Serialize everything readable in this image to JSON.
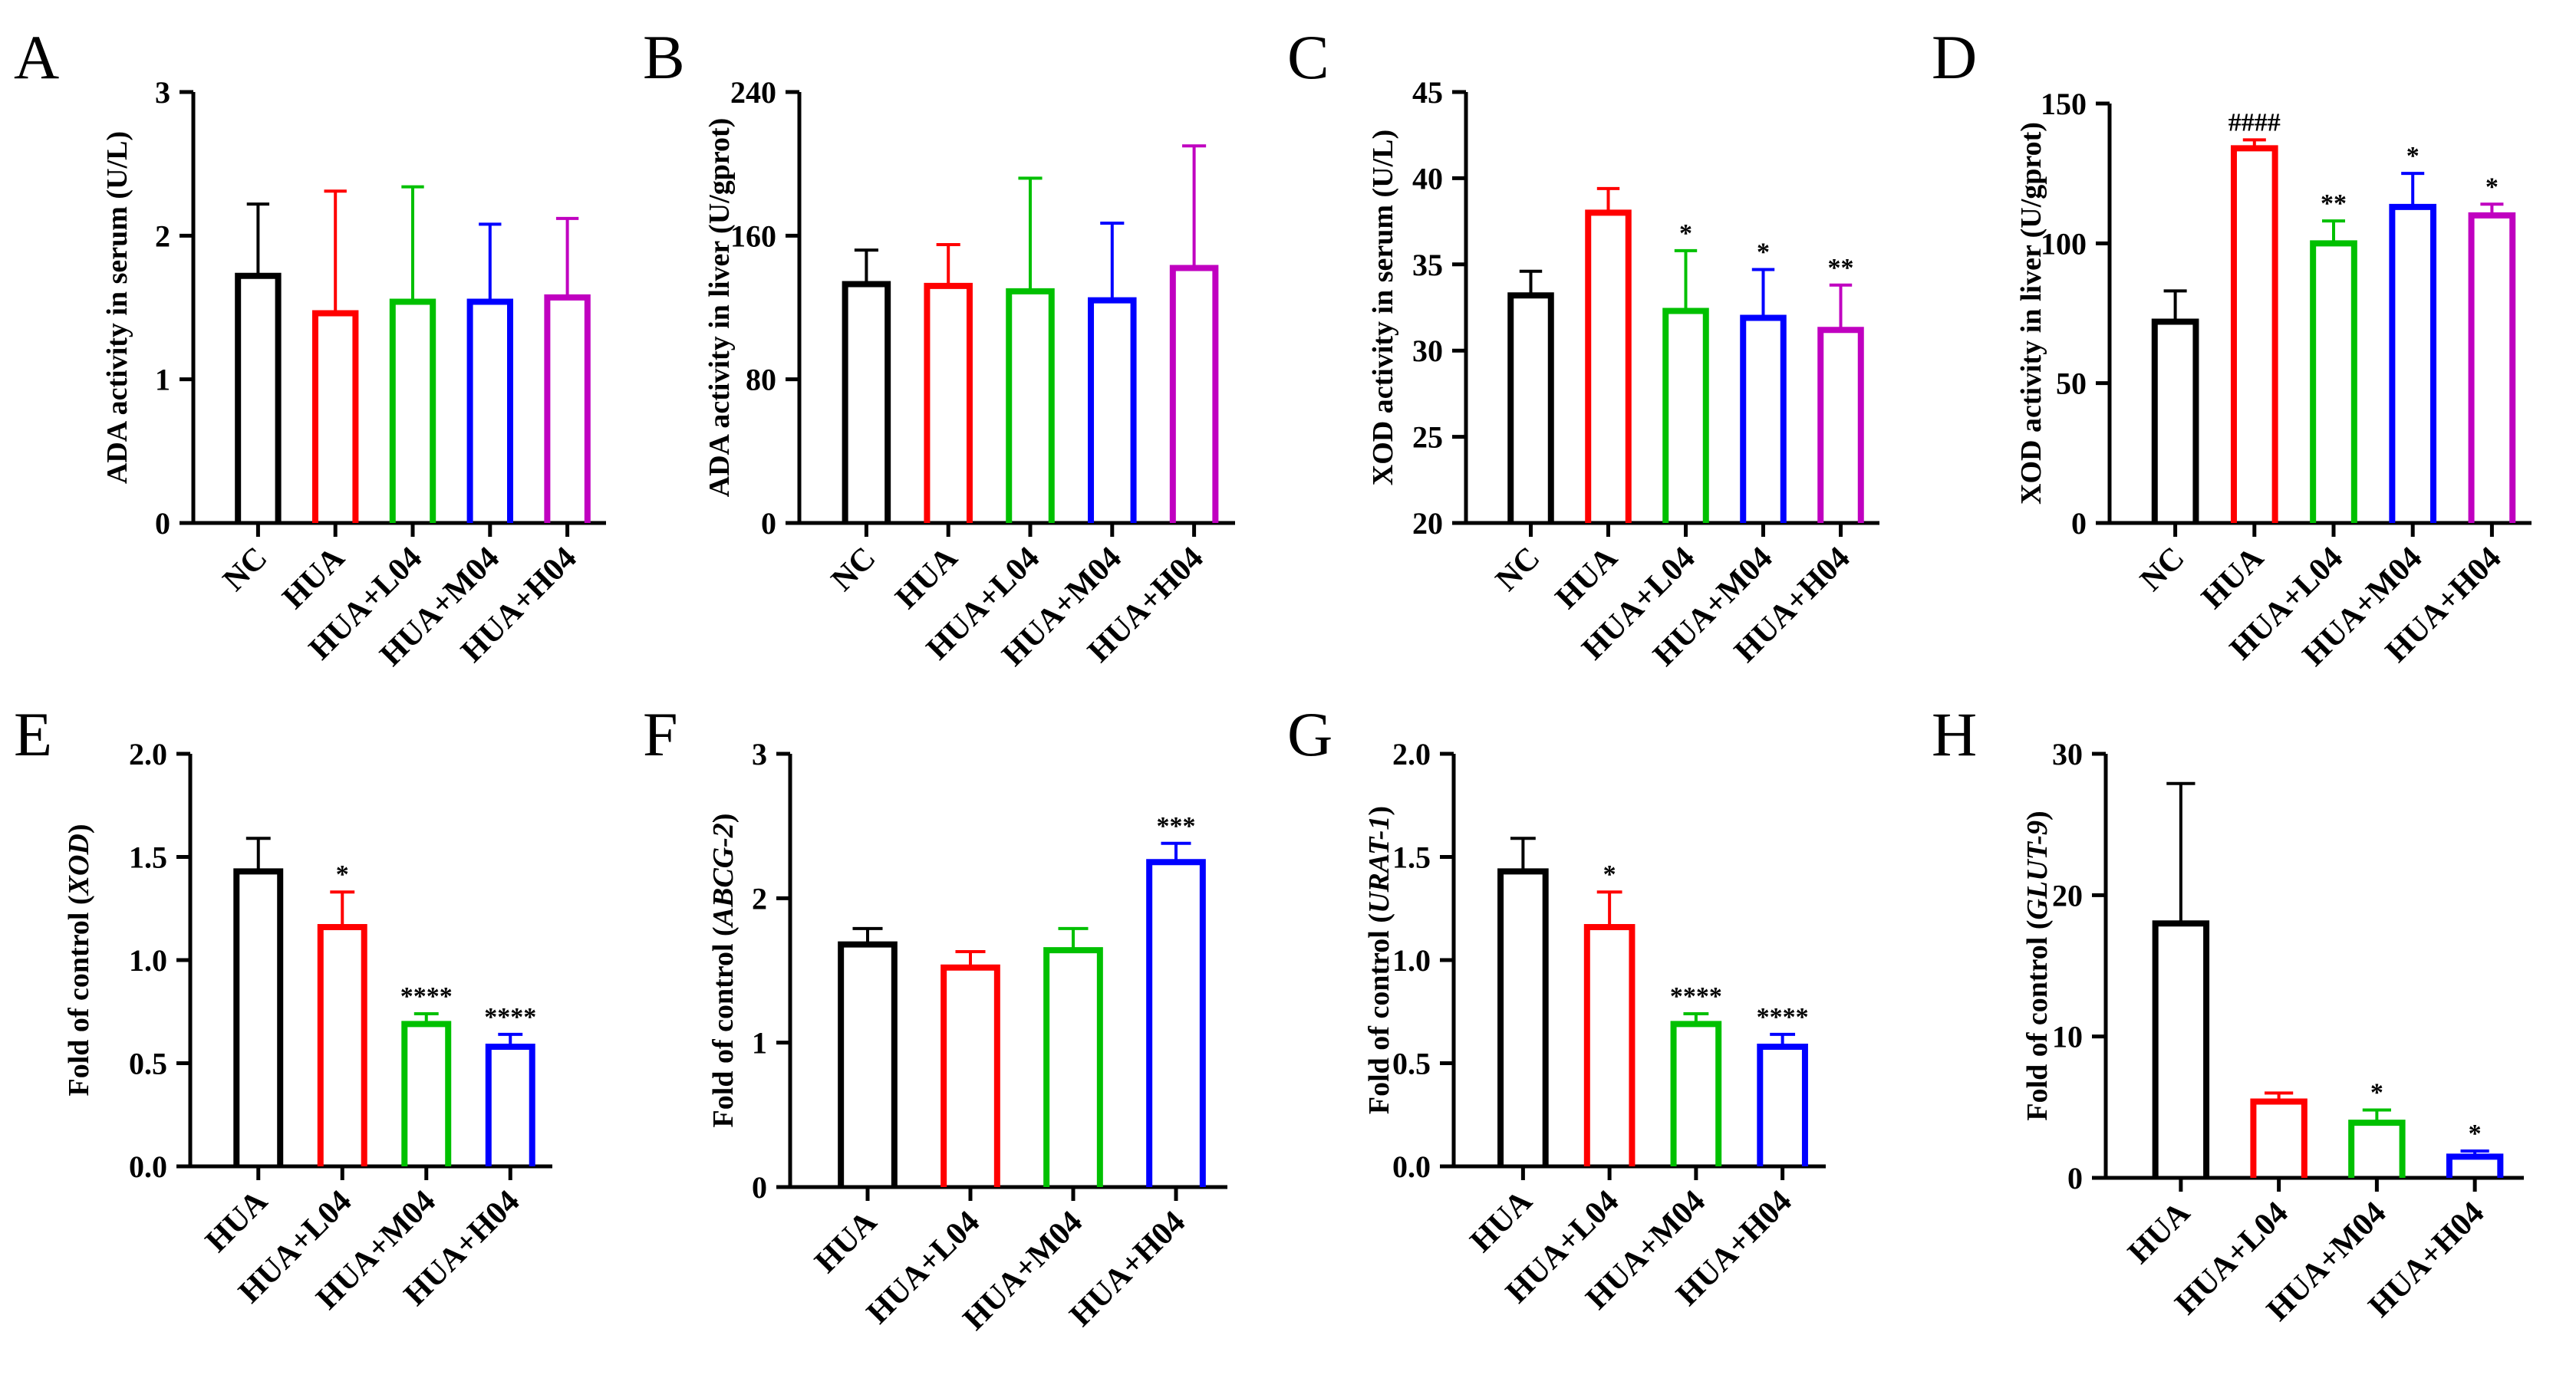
{
  "figure": {
    "colors": {
      "NC": "#000000",
      "HUA": "#ff0000",
      "HUA+L04": "#00c000",
      "HUA+M04": "#0000ff",
      "HUA+H04": "#c000c0"
    }
  },
  "chart_data": [
    {
      "panel": "A",
      "type": "bar",
      "title": "",
      "ylabel": "ADA activity in serum (U/L)",
      "ylabel_italic": "",
      "ylabel_suffix": "",
      "xlabel": "",
      "categories": [
        "NC",
        "HUA",
        "HUA+L04",
        "HUA+M04",
        "HUA+H04"
      ],
      "colors": [
        "#000000",
        "#ff0000",
        "#00c000",
        "#0000ff",
        "#c000c0"
      ],
      "values": [
        1.72,
        1.46,
        1.54,
        1.54,
        1.57
      ],
      "errors": [
        0.5,
        0.85,
        0.8,
        0.54,
        0.55
      ],
      "sig": [
        "",
        "",
        "",
        "",
        ""
      ],
      "ylim": [
        0,
        3
      ],
      "yticks": [
        0,
        1,
        2,
        3
      ],
      "ytick_labels": [
        "0",
        "1",
        "2",
        "3"
      ]
    },
    {
      "panel": "B",
      "type": "bar",
      "title": "",
      "ylabel": "ADA activity in liver (U/gprot)",
      "ylabel_italic": "",
      "ylabel_suffix": "",
      "xlabel": "",
      "categories": [
        "NC",
        "HUA",
        "HUA+L04",
        "HUA+M04",
        "HUA+H04"
      ],
      "colors": [
        "#000000",
        "#ff0000",
        "#00c000",
        "#0000ff",
        "#c000c0"
      ],
      "values": [
        133,
        132,
        129,
        124,
        142
      ],
      "errors": [
        19,
        23,
        63,
        43,
        68
      ],
      "sig": [
        "",
        "",
        "",
        "",
        ""
      ],
      "ylim": [
        0,
        240
      ],
      "yticks": [
        0,
        80,
        160,
        240
      ],
      "ytick_labels": [
        "0",
        "80",
        "160",
        "240"
      ]
    },
    {
      "panel": "C",
      "type": "bar",
      "title": "",
      "ylabel": "XOD activity in serum  (U/L)",
      "ylabel_italic": "",
      "ylabel_suffix": "",
      "xlabel": "",
      "categories": [
        "NC",
        "HUA",
        "HUA+L04",
        "HUA+M04",
        "HUA+H04"
      ],
      "colors": [
        "#000000",
        "#ff0000",
        "#00c000",
        "#0000ff",
        "#c000c0"
      ],
      "values": [
        33.2,
        38.0,
        32.3,
        31.9,
        31.2
      ],
      "errors": [
        1.4,
        1.4,
        3.5,
        2.8,
        2.6
      ],
      "sig": [
        "",
        "",
        "*",
        "*",
        "**"
      ],
      "ylim": [
        20,
        45
      ],
      "yticks": [
        20,
        25,
        30,
        35,
        40,
        45
      ],
      "ytick_labels": [
        "20",
        "25",
        "30",
        "35",
        "40",
        "45"
      ]
    },
    {
      "panel": "D",
      "type": "bar",
      "title": "",
      "ylabel": "XOD activity in liver  (U/gprot)",
      "ylabel_italic": "",
      "ylabel_suffix": "",
      "xlabel": "",
      "categories": [
        "NC",
        "HUA",
        "HUA+L04",
        "HUA+M04",
        "HUA+H04"
      ],
      "colors": [
        "#000000",
        "#ff0000",
        "#00c000",
        "#0000ff",
        "#c000c0"
      ],
      "values": [
        72,
        134,
        100,
        113,
        110
      ],
      "errors": [
        11,
        3,
        8,
        12,
        4
      ],
      "sig": [
        "",
        "####",
        "**",
        "*",
        "*"
      ],
      "ylim": [
        0,
        150
      ],
      "yticks": [
        0,
        50,
        100,
        150
      ],
      "ytick_labels": [
        "0",
        "50",
        "100",
        "150"
      ]
    },
    {
      "panel": "E",
      "type": "bar",
      "title": "",
      "ylabel": "Fold of control (",
      "ylabel_italic": "XOD",
      "ylabel_suffix": ")",
      "xlabel": "",
      "categories": [
        "HUA",
        "HUA+L04",
        "HUA+M04",
        "HUA+H04"
      ],
      "colors": [
        "#000000",
        "#ff0000",
        "#00c000",
        "#0000ff"
      ],
      "values": [
        1.43,
        1.16,
        0.69,
        0.58
      ],
      "errors": [
        0.16,
        0.17,
        0.05,
        0.06
      ],
      "sig": [
        "",
        "*",
        "****",
        "****"
      ],
      "ylim": [
        0,
        2
      ],
      "yticks": [
        0,
        0.5,
        1,
        1.5,
        2
      ],
      "ytick_labels": [
        "0.0",
        "0.5",
        "1.0",
        "1.5",
        "2.0"
      ]
    },
    {
      "panel": "F",
      "type": "bar",
      "title": "",
      "ylabel": "Fold of control (",
      "ylabel_italic": "ABCG-2",
      "ylabel_suffix": ")",
      "xlabel": "",
      "categories": [
        "HUA",
        "HUA+L04",
        "HUA+M04",
        "HUA+H04"
      ],
      "colors": [
        "#000000",
        "#ff0000",
        "#00c000",
        "#0000ff"
      ],
      "values": [
        1.68,
        1.52,
        1.64,
        2.25
      ],
      "errors": [
        0.11,
        0.11,
        0.15,
        0.13
      ],
      "sig": [
        "",
        "",
        "",
        "***"
      ],
      "ylim": [
        0,
        3
      ],
      "yticks": [
        0,
        1,
        2,
        3
      ],
      "ytick_labels": [
        "0",
        "1",
        "2",
        "3"
      ]
    },
    {
      "panel": "G",
      "type": "bar",
      "title": "",
      "ylabel": "Fold of control (",
      "ylabel_italic": "URAT-1",
      "ylabel_suffix": ")",
      "xlabel": "",
      "categories": [
        "HUA",
        "HUA+L04",
        "HUA+M04",
        "HUA+H04"
      ],
      "colors": [
        "#000000",
        "#ff0000",
        "#00c000",
        "#0000ff"
      ],
      "values": [
        1.43,
        1.16,
        0.69,
        0.58
      ],
      "errors": [
        0.16,
        0.17,
        0.05,
        0.06
      ],
      "sig": [
        "",
        "*",
        "****",
        "****"
      ],
      "ylim": [
        0,
        2
      ],
      "yticks": [
        0,
        0.5,
        1,
        1.5,
        2
      ],
      "ytick_labels": [
        "0.0",
        "0.5",
        "1.0",
        "1.5",
        "2.0"
      ]
    },
    {
      "panel": "H",
      "type": "bar",
      "title": "",
      "ylabel": "Fold of control (",
      "ylabel_italic": "GLUT-9",
      "ylabel_suffix": ")",
      "xlabel": "",
      "categories": [
        "HUA",
        "HUA+L04",
        "HUA+M04",
        "HUA+H04"
      ],
      "colors": [
        "#000000",
        "#ff0000",
        "#00c000",
        "#0000ff"
      ],
      "values": [
        18.0,
        5.4,
        3.9,
        1.5
      ],
      "errors": [
        9.9,
        0.6,
        0.9,
        0.4
      ],
      "sig": [
        "",
        "",
        "*",
        "*"
      ],
      "ylim": [
        0,
        30
      ],
      "yticks": [
        0,
        10,
        20,
        30
      ],
      "ytick_labels": [
        "0",
        "10",
        "20",
        "30"
      ]
    }
  ]
}
